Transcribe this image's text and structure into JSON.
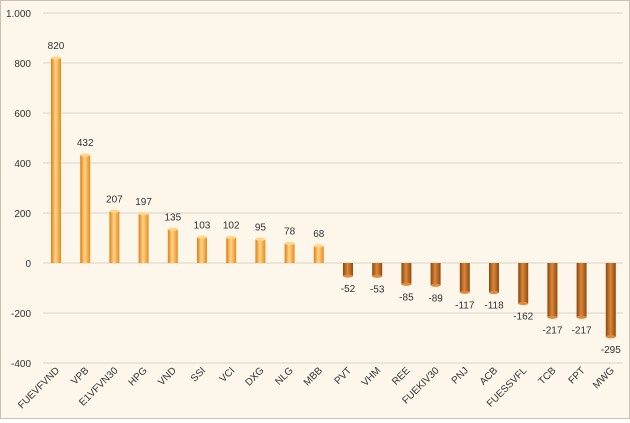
{
  "chart_data": {
    "type": "bar",
    "title": "",
    "xlabel": "",
    "ylabel": "",
    "categories": [
      "FUEVFVND",
      "VPB",
      "E1VFVN30",
      "HPG",
      "VND",
      "SSI",
      "VCI",
      "DXG",
      "NLG",
      "MBB",
      "PVT",
      "VHM",
      "REE",
      "FUEKIV30",
      "PNJ",
      "ACB",
      "FUESSVFL",
      "TCB",
      "FPT",
      "MWG"
    ],
    "values": [
      820,
      432,
      207,
      197,
      135,
      103,
      102,
      95,
      78,
      68,
      -52,
      -53,
      -85,
      -89,
      -117,
      -118,
      -162,
      -217,
      -217,
      -295
    ],
    "value_labels": [
      "820",
      "432",
      "207",
      "197",
      "135",
      "103",
      "102",
      "95",
      "78",
      "68",
      "-52",
      "-53",
      "-85",
      "-89",
      "-117",
      "-118",
      "-162",
      "-217",
      "-217",
      "-295"
    ],
    "ylim": [
      -400,
      1000
    ],
    "yticks": [
      -400,
      -200,
      0,
      200,
      400,
      600,
      800,
      1000
    ],
    "ytick_labels": [
      "-400",
      "-200",
      "0",
      "200",
      "400",
      "600",
      "800",
      "1.000"
    ],
    "grid": true,
    "legend": "none",
    "colors": {
      "positive": "#f29a22",
      "positive_highlight": "#ffd58a",
      "negative": "#a85512",
      "negative_highlight": "#e08a3c",
      "grid": "#d9d3c7",
      "background": "#fdf6ea",
      "text": "#333333"
    }
  }
}
